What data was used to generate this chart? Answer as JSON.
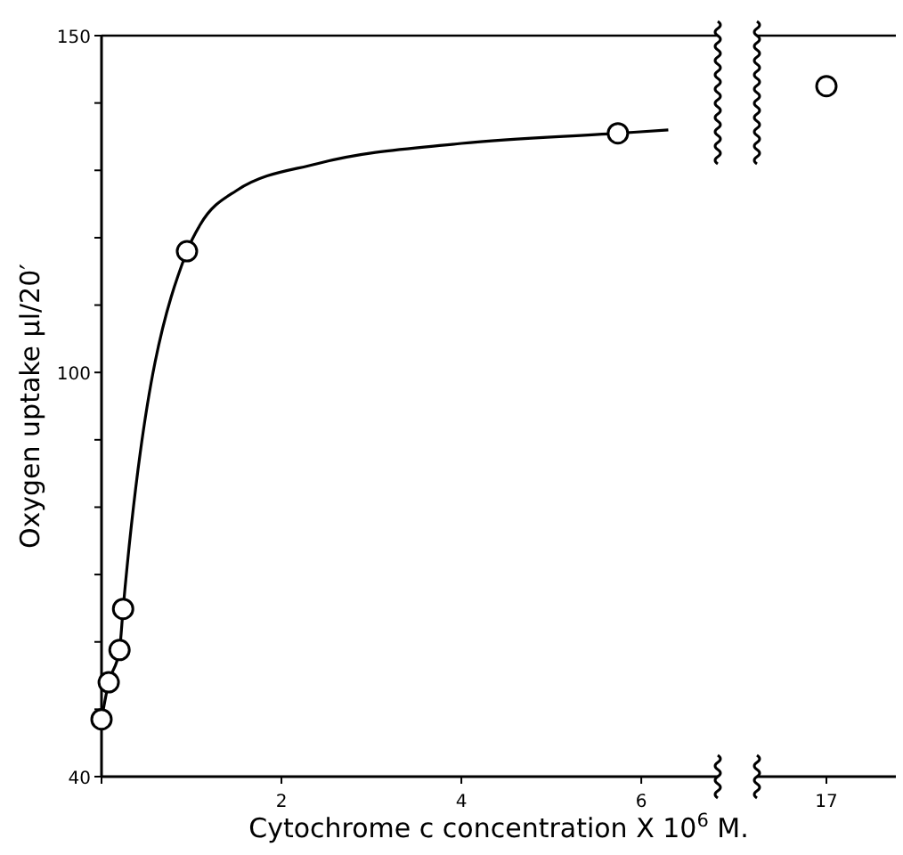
{
  "chart_data": [
    {
      "type": "line",
      "xlabel": "Cytochrome c concentration X 10$^{6}$ M.",
      "ylabel": "Oxygen uptake µl/20′",
      "xlim": [
        0,
        6.85
      ],
      "xticks": [
        {
          "value": 0,
          "label": null
        },
        2,
        4,
        6
      ],
      "ylim": [
        40,
        150
      ],
      "yticks": [
        40,
        {
          "value": 50,
          "label": null
        },
        {
          "value": 60,
          "label": null
        },
        {
          "value": 70,
          "label": null
        },
        {
          "value": 80,
          "label": null
        },
        {
          "value": 90,
          "label": null
        },
        100,
        {
          "value": 110,
          "label": null
        },
        {
          "value": 120,
          "label": null
        },
        {
          "value": 130,
          "label": null
        },
        {
          "value": 140,
          "label": null
        },
        150
      ],
      "grid": false,
      "series": [
        {
          "color": "#000000",
          "marker": "none",
          "x": [
            0,
            0.08,
            0.2,
            0.24,
            0.95,
            1.1,
            1.5,
            2.4,
            4,
            5.74,
            6.3
          ],
          "values": [
            48.5,
            54,
            58.8,
            64.9,
            118,
            122,
            127,
            131,
            134,
            135.5,
            136
          ]
        },
        {
          "type": "scatter",
          "color": "#000000",
          "marker": "circle",
          "x": [
            0,
            0.08,
            0.2,
            0.24,
            0.95,
            5.74
          ],
          "values": [
            48.5,
            54,
            58.8,
            64.9,
            118,
            135.5
          ]
        }
      ]
    },
    {
      "type": "scatter",
      "categories": [
        "17"
      ],
      "ylim": [
        40,
        150
      ],
      "tick_labels": "x",
      "grid": false,
      "series": [
        {
          "color": "#000000",
          "marker": "circle",
          "values": [
            142.5
          ]
        }
      ]
    }
  ]
}
